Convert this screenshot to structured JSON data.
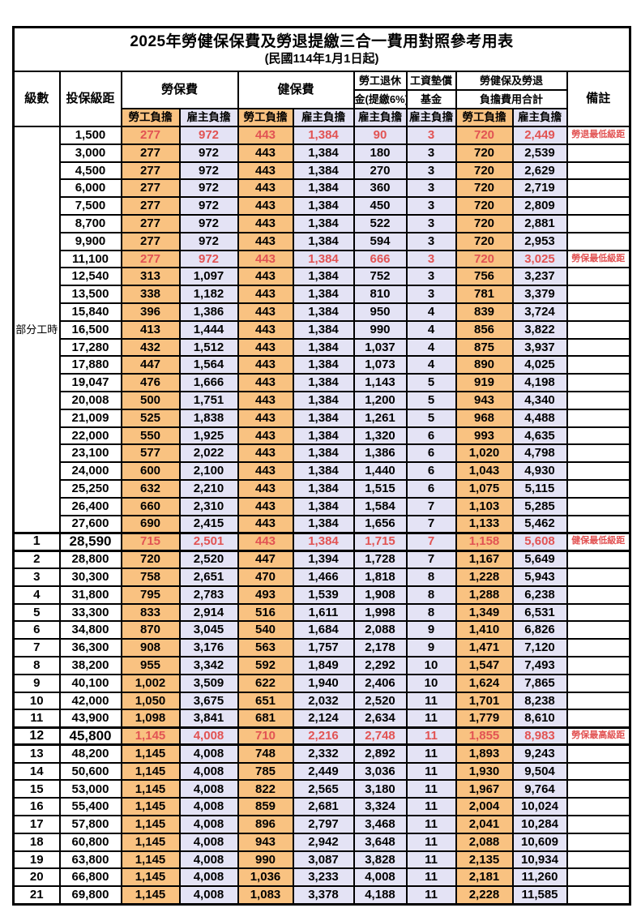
{
  "title": "2025年勞健保保費及勞退提繳三合一費用對照參考用表",
  "subtitle": "(民國114年1月1日起)",
  "colors": {
    "employee_column_bg": "#F9C281",
    "employer_column_bg": "#E4E3F5",
    "highlight_text": "#E25353",
    "border": "#000000"
  },
  "header": {
    "level": "級數",
    "salary_bracket": "投保級距",
    "labor_insurance": "勞保費",
    "health_insurance": "健保費",
    "pension_line1": "勞工退休",
    "pension_line2": "金(提繳6%)",
    "wage_fund_line1": "工資墊償",
    "wage_fund_line2": "基金",
    "total_line1": "勞健保及勞退",
    "total_line2": "負擔費用合計",
    "remark": "備註",
    "employee_share": "勞工負擔",
    "employer_share": "雇主負擔"
  },
  "group_label": "部分工時",
  "rows": [
    {
      "lv": "",
      "sal": "1,500",
      "v": [
        "277",
        "972",
        "443",
        "1,384",
        "90",
        "3",
        "720",
        "2,449"
      ],
      "note": "勞退最低級距",
      "red": true,
      "emph": false
    },
    {
      "lv": "",
      "sal": "3,000",
      "v": [
        "277",
        "972",
        "443",
        "1,384",
        "180",
        "3",
        "720",
        "2,539"
      ],
      "note": "",
      "red": false,
      "emph": false
    },
    {
      "lv": "",
      "sal": "4,500",
      "v": [
        "277",
        "972",
        "443",
        "1,384",
        "270",
        "3",
        "720",
        "2,629"
      ],
      "note": "",
      "red": false,
      "emph": false
    },
    {
      "lv": "",
      "sal": "6,000",
      "v": [
        "277",
        "972",
        "443",
        "1,384",
        "360",
        "3",
        "720",
        "2,719"
      ],
      "note": "",
      "red": false,
      "emph": false
    },
    {
      "lv": "",
      "sal": "7,500",
      "v": [
        "277",
        "972",
        "443",
        "1,384",
        "450",
        "3",
        "720",
        "2,809"
      ],
      "note": "",
      "red": false,
      "emph": false
    },
    {
      "lv": "",
      "sal": "8,700",
      "v": [
        "277",
        "972",
        "443",
        "1,384",
        "522",
        "3",
        "720",
        "2,881"
      ],
      "note": "",
      "red": false,
      "emph": false
    },
    {
      "lv": "",
      "sal": "9,900",
      "v": [
        "277",
        "972",
        "443",
        "1,384",
        "594",
        "3",
        "720",
        "2,953"
      ],
      "note": "",
      "red": false,
      "emph": false
    },
    {
      "lv": "",
      "sal": "11,100",
      "v": [
        "277",
        "972",
        "443",
        "1,384",
        "666",
        "3",
        "720",
        "3,025"
      ],
      "note": "勞保最低級距",
      "red": true,
      "emph": false
    },
    {
      "lv": "",
      "sal": "12,540",
      "v": [
        "313",
        "1,097",
        "443",
        "1,384",
        "752",
        "3",
        "756",
        "3,237"
      ],
      "note": "",
      "red": false,
      "emph": false
    },
    {
      "lv": "",
      "sal": "13,500",
      "v": [
        "338",
        "1,182",
        "443",
        "1,384",
        "810",
        "3",
        "781",
        "3,379"
      ],
      "note": "",
      "red": false,
      "emph": false
    },
    {
      "lv": "",
      "sal": "15,840",
      "v": [
        "396",
        "1,386",
        "443",
        "1,384",
        "950",
        "4",
        "839",
        "3,724"
      ],
      "note": "",
      "red": false,
      "emph": false
    },
    {
      "lv": "",
      "sal": "16,500",
      "v": [
        "413",
        "1,444",
        "443",
        "1,384",
        "990",
        "4",
        "856",
        "3,822"
      ],
      "note": "",
      "red": false,
      "emph": false
    },
    {
      "lv": "",
      "sal": "17,280",
      "v": [
        "432",
        "1,512",
        "443",
        "1,384",
        "1,037",
        "4",
        "875",
        "3,937"
      ],
      "note": "",
      "red": false,
      "emph": false
    },
    {
      "lv": "",
      "sal": "17,880",
      "v": [
        "447",
        "1,564",
        "443",
        "1,384",
        "1,073",
        "4",
        "890",
        "4,025"
      ],
      "note": "",
      "red": false,
      "emph": false
    },
    {
      "lv": "",
      "sal": "19,047",
      "v": [
        "476",
        "1,666",
        "443",
        "1,384",
        "1,143",
        "5",
        "919",
        "4,198"
      ],
      "note": "",
      "red": false,
      "emph": false
    },
    {
      "lv": "",
      "sal": "20,008",
      "v": [
        "500",
        "1,751",
        "443",
        "1,384",
        "1,200",
        "5",
        "943",
        "4,340"
      ],
      "note": "",
      "red": false,
      "emph": false
    },
    {
      "lv": "",
      "sal": "21,009",
      "v": [
        "525",
        "1,838",
        "443",
        "1,384",
        "1,261",
        "5",
        "968",
        "4,488"
      ],
      "note": "",
      "red": false,
      "emph": false
    },
    {
      "lv": "",
      "sal": "22,000",
      "v": [
        "550",
        "1,925",
        "443",
        "1,384",
        "1,320",
        "6",
        "993",
        "4,635"
      ],
      "note": "",
      "red": false,
      "emph": false
    },
    {
      "lv": "",
      "sal": "23,100",
      "v": [
        "577",
        "2,022",
        "443",
        "1,384",
        "1,386",
        "6",
        "1,020",
        "4,798"
      ],
      "note": "",
      "red": false,
      "emph": false
    },
    {
      "lv": "",
      "sal": "24,000",
      "v": [
        "600",
        "2,100",
        "443",
        "1,384",
        "1,440",
        "6",
        "1,043",
        "4,930"
      ],
      "note": "",
      "red": false,
      "emph": false
    },
    {
      "lv": "",
      "sal": "25,250",
      "v": [
        "632",
        "2,210",
        "443",
        "1,384",
        "1,515",
        "6",
        "1,075",
        "5,115"
      ],
      "note": "",
      "red": false,
      "emph": false
    },
    {
      "lv": "",
      "sal": "26,400",
      "v": [
        "660",
        "2,310",
        "443",
        "1,384",
        "1,584",
        "7",
        "1,103",
        "5,285"
      ],
      "note": "",
      "red": false,
      "emph": false
    },
    {
      "lv": "",
      "sal": "27,600",
      "v": [
        "690",
        "2,415",
        "443",
        "1,384",
        "1,656",
        "7",
        "1,133",
        "5,462"
      ],
      "note": "",
      "red": false,
      "emph": false
    },
    {
      "lv": "1",
      "sal": "28,590",
      "v": [
        "715",
        "2,501",
        "443",
        "1,384",
        "1,715",
        "7",
        "1,158",
        "5,608"
      ],
      "note": "健保最低級距",
      "red": true,
      "emph": true
    },
    {
      "lv": "2",
      "sal": "28,800",
      "v": [
        "720",
        "2,520",
        "447",
        "1,394",
        "1,728",
        "7",
        "1,167",
        "5,649"
      ],
      "note": "",
      "red": false,
      "emph": false
    },
    {
      "lv": "3",
      "sal": "30,300",
      "v": [
        "758",
        "2,651",
        "470",
        "1,466",
        "1,818",
        "8",
        "1,228",
        "5,943"
      ],
      "note": "",
      "red": false,
      "emph": false
    },
    {
      "lv": "4",
      "sal": "31,800",
      "v": [
        "795",
        "2,783",
        "493",
        "1,539",
        "1,908",
        "8",
        "1,288",
        "6,238"
      ],
      "note": "",
      "red": false,
      "emph": false
    },
    {
      "lv": "5",
      "sal": "33,300",
      "v": [
        "833",
        "2,914",
        "516",
        "1,611",
        "1,998",
        "8",
        "1,349",
        "6,531"
      ],
      "note": "",
      "red": false,
      "emph": false
    },
    {
      "lv": "6",
      "sal": "34,800",
      "v": [
        "870",
        "3,045",
        "540",
        "1,684",
        "2,088",
        "9",
        "1,410",
        "6,826"
      ],
      "note": "",
      "red": false,
      "emph": false
    },
    {
      "lv": "7",
      "sal": "36,300",
      "v": [
        "908",
        "3,176",
        "563",
        "1,757",
        "2,178",
        "9",
        "1,471",
        "7,120"
      ],
      "note": "",
      "red": false,
      "emph": false
    },
    {
      "lv": "8",
      "sal": "38,200",
      "v": [
        "955",
        "3,342",
        "592",
        "1,849",
        "2,292",
        "10",
        "1,547",
        "7,493"
      ],
      "note": "",
      "red": false,
      "emph": false
    },
    {
      "lv": "9",
      "sal": "40,100",
      "v": [
        "1,002",
        "3,509",
        "622",
        "1,940",
        "2,406",
        "10",
        "1,624",
        "7,865"
      ],
      "note": "",
      "red": false,
      "emph": false
    },
    {
      "lv": "10",
      "sal": "42,000",
      "v": [
        "1,050",
        "3,675",
        "651",
        "2,032",
        "2,520",
        "11",
        "1,701",
        "8,238"
      ],
      "note": "",
      "red": false,
      "emph": false
    },
    {
      "lv": "11",
      "sal": "43,900",
      "v": [
        "1,098",
        "3,841",
        "681",
        "2,124",
        "2,634",
        "11",
        "1,779",
        "8,610"
      ],
      "note": "",
      "red": false,
      "emph": false
    },
    {
      "lv": "12",
      "sal": "45,800",
      "v": [
        "1,145",
        "4,008",
        "710",
        "2,216",
        "2,748",
        "11",
        "1,855",
        "8,983"
      ],
      "note": "勞保最高級距",
      "red": true,
      "emph": true
    },
    {
      "lv": "13",
      "sal": "48,200",
      "v": [
        "1,145",
        "4,008",
        "748",
        "2,332",
        "2,892",
        "11",
        "1,893",
        "9,243"
      ],
      "note": "",
      "red": false,
      "emph": false
    },
    {
      "lv": "14",
      "sal": "50,600",
      "v": [
        "1,145",
        "4,008",
        "785",
        "2,449",
        "3,036",
        "11",
        "1,930",
        "9,504"
      ],
      "note": "",
      "red": false,
      "emph": false
    },
    {
      "lv": "15",
      "sal": "53,000",
      "v": [
        "1,145",
        "4,008",
        "822",
        "2,565",
        "3,180",
        "11",
        "1,967",
        "9,764"
      ],
      "note": "",
      "red": false,
      "emph": false
    },
    {
      "lv": "16",
      "sal": "55,400",
      "v": [
        "1,145",
        "4,008",
        "859",
        "2,681",
        "3,324",
        "11",
        "2,004",
        "10,024"
      ],
      "note": "",
      "red": false,
      "emph": false
    },
    {
      "lv": "17",
      "sal": "57,800",
      "v": [
        "1,145",
        "4,008",
        "896",
        "2,797",
        "3,468",
        "11",
        "2,041",
        "10,284"
      ],
      "note": "",
      "red": false,
      "emph": false
    },
    {
      "lv": "18",
      "sal": "60,800",
      "v": [
        "1,145",
        "4,008",
        "943",
        "2,942",
        "3,648",
        "11",
        "2,088",
        "10,609"
      ],
      "note": "",
      "red": false,
      "emph": false
    },
    {
      "lv": "19",
      "sal": "63,800",
      "v": [
        "1,145",
        "4,008",
        "990",
        "3,087",
        "3,828",
        "11",
        "2,135",
        "10,934"
      ],
      "note": "",
      "red": false,
      "emph": false
    },
    {
      "lv": "20",
      "sal": "66,800",
      "v": [
        "1,145",
        "4,008",
        "1,036",
        "3,233",
        "4,008",
        "11",
        "2,181",
        "11,260"
      ],
      "note": "",
      "red": false,
      "emph": false
    },
    {
      "lv": "21",
      "sal": "69,800",
      "v": [
        "1,145",
        "4,008",
        "1,083",
        "3,378",
        "4,188",
        "11",
        "2,228",
        "11,585"
      ],
      "note": "",
      "red": false,
      "emph": false
    }
  ]
}
